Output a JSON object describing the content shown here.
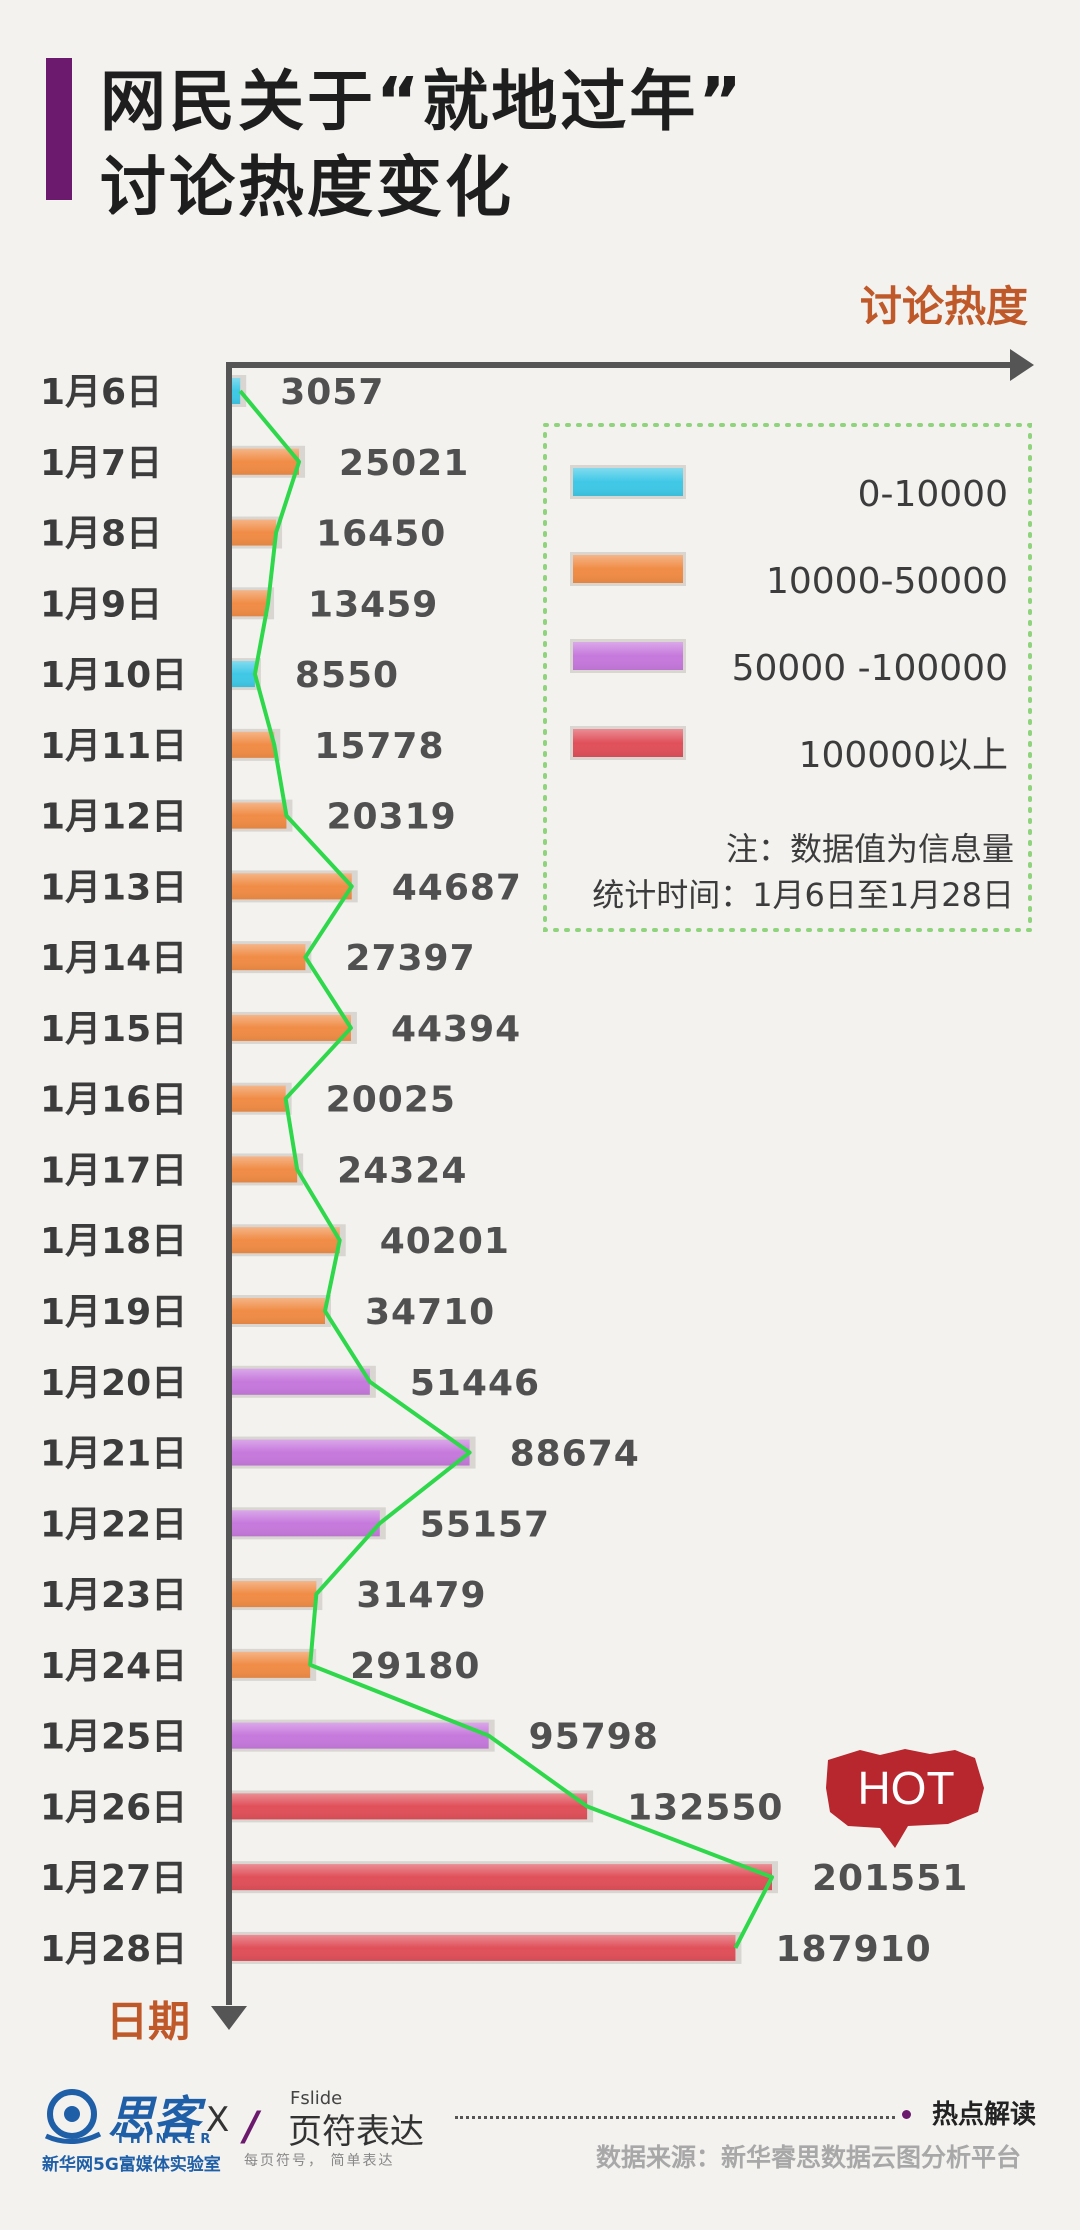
{
  "title": {
    "line1": "网民关于“就地过年”",
    "line2": "讨论热度变化"
  },
  "chart_data": {
    "type": "bar",
    "orientation": "horizontal",
    "x_axis_label": "讨论热度",
    "y_axis_label": "日期",
    "categories": [
      "1月6日",
      "1月7日",
      "1月8日",
      "1月9日",
      "1月10日",
      "1月11日",
      "1月12日",
      "1月13日",
      "1月14日",
      "1月15日",
      "1月16日",
      "1月17日",
      "1月18日",
      "1月19日",
      "1月20日",
      "1月21日",
      "1月22日",
      "1月23日",
      "1月24日",
      "1月25日",
      "1月26日",
      "1月27日",
      "1月28日"
    ],
    "values": [
      3057,
      25021,
      16450,
      13459,
      8550,
      15778,
      20319,
      44687,
      27397,
      44394,
      20025,
      24324,
      40201,
      34710,
      51446,
      88674,
      55157,
      31479,
      29180,
      95798,
      132550,
      201551,
      187910
    ],
    "value_labels": [
      "3057",
      "25021",
      "16450",
      "13459",
      "8550",
      "15778",
      "20319",
      "44687",
      "27397",
      "44394",
      "20025",
      "24324",
      "40201",
      "34710",
      "51446",
      "88674",
      "55157",
      "31479",
      "29180",
      "95798",
      "132550",
      "201551",
      "187910"
    ],
    "trend_line": true,
    "trend_color": "#2ed84a",
    "legend": [
      {
        "label": "0-10000",
        "color": "#3fc8e6",
        "min": 0,
        "max": 10000
      },
      {
        "label": "10000-50000",
        "color": "#f08c46",
        "min": 10000,
        "max": 50000
      },
      {
        "label": "50000 -100000",
        "color": "#c679dc",
        "min": 50000,
        "max": 100000
      },
      {
        "label": "100000以上",
        "color": "#e0505a",
        "min": 100000,
        "max": null
      }
    ],
    "legend_placement": "top-right",
    "note": "注：数据值为信息量",
    "period": "统计时间：1月6日至1月28日",
    "annotation": "HOT",
    "annotation_color": "#b8262e"
  },
  "footer": {
    "thinker_name": "思客",
    "thinker_sub": "THINKER",
    "thinker_org": "新华网5G富媒体实验室",
    "x_mark": "X",
    "fslide_mark": "/",
    "fslide_en": "Fslide",
    "fslide_cn": "页符表达",
    "fslide_slogan": "每页符号， 简单表达",
    "hot_read": "热点解读",
    "source": "数据来源：新华睿思数据云图分析平台"
  }
}
